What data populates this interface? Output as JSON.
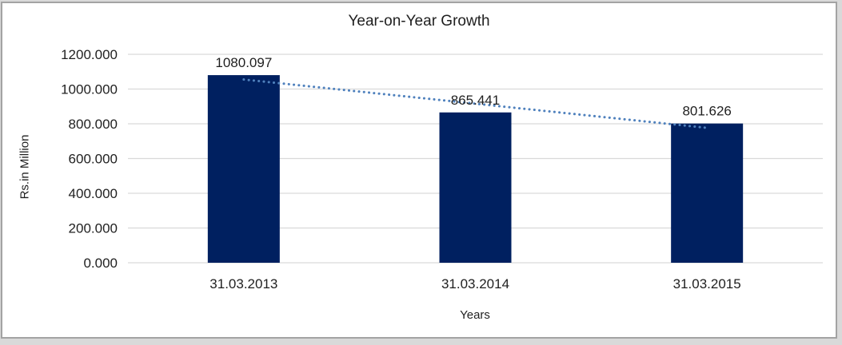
{
  "chart_data": {
    "type": "bar",
    "title": "Year-on-Year Growth",
    "xlabel": "Years",
    "ylabel": "Rs.in Million",
    "categories": [
      "31.03.2013",
      "31.03.2014",
      "31.03.2015"
    ],
    "values": [
      1080.097,
      865.441,
      801.626
    ],
    "data_labels": [
      "1080.097",
      "865.441",
      "801.626"
    ],
    "y_ticks": [
      {
        "value": 0,
        "label": "0.000"
      },
      {
        "value": 200,
        "label": "200.000"
      },
      {
        "value": 400,
        "label": "400.000"
      },
      {
        "value": 600,
        "label": "600.000"
      },
      {
        "value": 800,
        "label": "800.000"
      },
      {
        "value": 1000,
        "label": "1000.000"
      },
      {
        "value": 1200,
        "label": "1200.000"
      }
    ],
    "ylim": [
      0,
      1200
    ],
    "grid": true,
    "legend": "none",
    "trendline": {
      "type": "linear",
      "style": "dotted"
    },
    "colors": {
      "bar": "#002060",
      "trendline": "#4f81bd",
      "gridline": "#d9d9d9",
      "text": "#1f1f1f",
      "frame_border": "#a3a3a3",
      "page_background": "#d9d9d9",
      "chart_background": "#ffffff"
    }
  }
}
